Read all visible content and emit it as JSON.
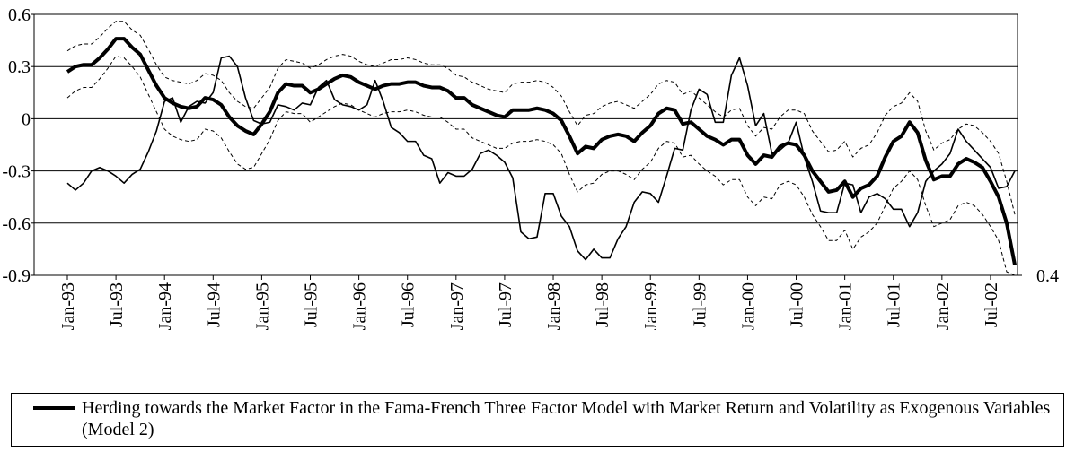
{
  "chart_data": {
    "type": "line",
    "categories": [
      "Jan-93",
      null,
      null,
      null,
      null,
      null,
      "Jul-93",
      null,
      null,
      null,
      null,
      null,
      "Jan-94",
      null,
      null,
      null,
      null,
      null,
      "Jul-94",
      null,
      null,
      null,
      null,
      null,
      "Jan-95",
      null,
      null,
      null,
      null,
      null,
      "Jul-95",
      null,
      null,
      null,
      null,
      null,
      "Jan-96",
      null,
      null,
      null,
      null,
      null,
      "Jul-96",
      null,
      null,
      null,
      null,
      null,
      "Jan-97",
      null,
      null,
      null,
      null,
      null,
      "Jul-97",
      null,
      null,
      null,
      null,
      null,
      "Jan-98",
      null,
      null,
      null,
      null,
      null,
      "Jul-98",
      null,
      null,
      null,
      null,
      null,
      "Jan-99",
      null,
      null,
      null,
      null,
      null,
      "Jul-99",
      null,
      null,
      null,
      null,
      null,
      "Jan-00",
      null,
      null,
      null,
      null,
      null,
      "Jul-00",
      null,
      null,
      null,
      null,
      null,
      "Jan-01",
      null,
      null,
      null,
      null,
      null,
      "Jul-01",
      null,
      null,
      null,
      null,
      null,
      "Jan-02",
      null,
      null,
      null,
      null,
      null,
      "Jul-02",
      null,
      null,
      null
    ],
    "series": [
      {
        "name": "Herding towards the Market Factor in the Fama-French Three Factor Model with Market Return and Volatility as Exogenous Variables (Model 2)",
        "color": "#000000",
        "line_style": "thick",
        "values": [
          0.27,
          0.3,
          0.31,
          0.31,
          0.35,
          0.4,
          0.46,
          0.46,
          0.41,
          0.37,
          0.28,
          0.19,
          0.12,
          0.09,
          0.07,
          0.06,
          0.07,
          0.12,
          0.11,
          0.08,
          0.01,
          -0.04,
          -0.07,
          -0.09,
          -0.03,
          0.04,
          0.15,
          0.2,
          0.19,
          0.19,
          0.15,
          0.17,
          0.2,
          0.23,
          0.25,
          0.24,
          0.21,
          0.19,
          0.17,
          0.19,
          0.2,
          0.2,
          0.21,
          0.21,
          0.19,
          0.18,
          0.18,
          0.16,
          0.12,
          0.12,
          0.08,
          0.06,
          0.04,
          0.02,
          0.01,
          0.05,
          0.05,
          0.05,
          0.06,
          0.05,
          0.03,
          -0.01,
          -0.1,
          -0.2,
          -0.16,
          -0.17,
          -0.12,
          -0.1,
          -0.09,
          -0.1,
          -0.13,
          -0.08,
          -0.04,
          0.03,
          0.06,
          0.05,
          -0.03,
          -0.02,
          -0.06,
          -0.1,
          -0.12,
          -0.15,
          -0.12,
          -0.12,
          -0.21,
          -0.26,
          -0.21,
          -0.22,
          -0.16,
          -0.14,
          -0.15,
          -0.21,
          -0.3,
          -0.36,
          -0.42,
          -0.41,
          -0.36,
          -0.45,
          -0.4,
          -0.38,
          -0.33,
          -0.22,
          -0.13,
          -0.1,
          -0.02,
          -0.08,
          -0.24,
          -0.35,
          -0.33,
          -0.33,
          -0.26,
          -0.23,
          -0.25,
          -0.28,
          -0.36,
          -0.45,
          -0.6,
          -0.84
        ]
      },
      {
        "color": "#000000",
        "line_style": "dashed",
        "values": [
          0.39,
          0.42,
          0.43,
          0.43,
          0.47,
          0.52,
          0.56,
          0.56,
          0.51,
          0.48,
          0.4,
          0.31,
          0.24,
          0.22,
          0.21,
          0.2,
          0.22,
          0.26,
          0.25,
          0.22,
          0.15,
          0.1,
          0.07,
          0.06,
          0.12,
          0.18,
          0.29,
          0.34,
          0.33,
          0.32,
          0.29,
          0.31,
          0.34,
          0.36,
          0.37,
          0.36,
          0.33,
          0.31,
          0.3,
          0.32,
          0.34,
          0.34,
          0.35,
          0.34,
          0.32,
          0.31,
          0.31,
          0.29,
          0.25,
          0.24,
          0.21,
          0.19,
          0.17,
          0.16,
          0.15,
          0.2,
          0.21,
          0.21,
          0.22,
          0.21,
          0.18,
          0.13,
          0.04,
          -0.04,
          0.02,
          0.03,
          0.07,
          0.09,
          0.1,
          0.08,
          0.06,
          0.1,
          0.14,
          0.2,
          0.22,
          0.21,
          0.14,
          0.16,
          0.12,
          0.08,
          0.04,
          0.01,
          0.05,
          0.06,
          -0.04,
          -0.1,
          -0.05,
          -0.06,
          0.01,
          0.05,
          0.05,
          0.03,
          -0.07,
          -0.13,
          -0.19,
          -0.18,
          -0.13,
          -0.22,
          -0.17,
          -0.15,
          -0.08,
          0.02,
          0.07,
          0.09,
          0.15,
          0.1,
          -0.07,
          -0.18,
          -0.14,
          -0.12,
          -0.06,
          -0.03,
          -0.04,
          -0.08,
          -0.13,
          -0.2,
          -0.36,
          -0.55
        ]
      },
      {
        "color": "#000000",
        "line_style": "dashed",
        "values": [
          0.12,
          0.16,
          0.18,
          0.18,
          0.23,
          0.29,
          0.36,
          0.35,
          0.3,
          0.24,
          0.14,
          0.04,
          -0.06,
          -0.1,
          -0.12,
          -0.13,
          -0.12,
          -0.06,
          -0.07,
          -0.11,
          -0.19,
          -0.26,
          -0.29,
          -0.28,
          -0.2,
          -0.12,
          -0.01,
          0.04,
          0.03,
          0.03,
          -0.02,
          0.01,
          0.04,
          0.07,
          0.09,
          0.08,
          0.05,
          0.03,
          0.01,
          0.03,
          0.04,
          0.04,
          0.05,
          0.04,
          0.02,
          0.01,
          0.01,
          -0.02,
          -0.06,
          -0.06,
          -0.11,
          -0.13,
          -0.15,
          -0.17,
          -0.17,
          -0.14,
          -0.13,
          -0.13,
          -0.12,
          -0.13,
          -0.15,
          -0.2,
          -0.32,
          -0.42,
          -0.38,
          -0.37,
          -0.32,
          -0.3,
          -0.3,
          -0.32,
          -0.35,
          -0.29,
          -0.25,
          -0.17,
          -0.13,
          -0.14,
          -0.22,
          -0.21,
          -0.26,
          -0.3,
          -0.33,
          -0.38,
          -0.35,
          -0.35,
          -0.45,
          -0.5,
          -0.45,
          -0.46,
          -0.38,
          -0.36,
          -0.38,
          -0.45,
          -0.55,
          -0.62,
          -0.7,
          -0.7,
          -0.64,
          -0.75,
          -0.68,
          -0.65,
          -0.6,
          -0.5,
          -0.4,
          -0.36,
          -0.3,
          -0.35,
          -0.5,
          -0.62,
          -0.6,
          -0.58,
          -0.5,
          -0.48,
          -0.5,
          -0.55,
          -0.62,
          -0.7,
          -0.88,
          -0.9
        ]
      },
      {
        "color": "#000000",
        "line_style": "thin",
        "values": [
          -0.37,
          -0.41,
          -0.37,
          -0.3,
          -0.28,
          -0.3,
          -0.33,
          -0.37,
          -0.32,
          -0.29,
          -0.19,
          -0.07,
          0.1,
          0.12,
          -0.02,
          0.07,
          0.1,
          0.09,
          0.15,
          0.35,
          0.36,
          0.3,
          0.12,
          -0.01,
          -0.03,
          -0.02,
          0.08,
          0.07,
          0.05,
          0.09,
          0.08,
          0.18,
          0.22,
          0.11,
          0.08,
          0.07,
          0.05,
          0.08,
          0.22,
          0.1,
          -0.05,
          -0.08,
          -0.13,
          -0.13,
          -0.21,
          -0.23,
          -0.37,
          -0.31,
          -0.33,
          -0.33,
          -0.29,
          -0.2,
          -0.18,
          -0.21,
          -0.25,
          -0.34,
          -0.65,
          -0.69,
          -0.68,
          -0.43,
          -0.43,
          -0.56,
          -0.62,
          -0.76,
          -0.81,
          -0.75,
          -0.8,
          -0.8,
          -0.69,
          -0.62,
          -0.48,
          -0.42,
          -0.43,
          -0.48,
          -0.33,
          -0.17,
          -0.18,
          0.05,
          0.17,
          0.14,
          -0.02,
          -0.02,
          0.25,
          0.35,
          0.19,
          -0.04,
          0.03,
          -0.2,
          -0.18,
          -0.14,
          -0.02,
          -0.22,
          -0.36,
          -0.53,
          -0.54,
          -0.54,
          -0.37,
          -0.38,
          -0.54,
          -0.45,
          -0.43,
          -0.46,
          -0.52,
          -0.52,
          -0.62,
          -0.54,
          -0.36,
          -0.3,
          -0.26,
          -0.2,
          -0.06,
          -0.13,
          -0.18,
          -0.23,
          -0.28,
          -0.4,
          -0.39,
          -0.3
        ]
      }
    ],
    "ylim": [
      -0.9,
      0.6
    ],
    "yticks": [
      0.6,
      0.3,
      0,
      -0.3,
      -0.6,
      -0.9
    ],
    "y2lim": [
      0.4,
      1.9
    ],
    "y2ticks": [
      0.4
    ],
    "grid": true,
    "legend": "bottom"
  }
}
